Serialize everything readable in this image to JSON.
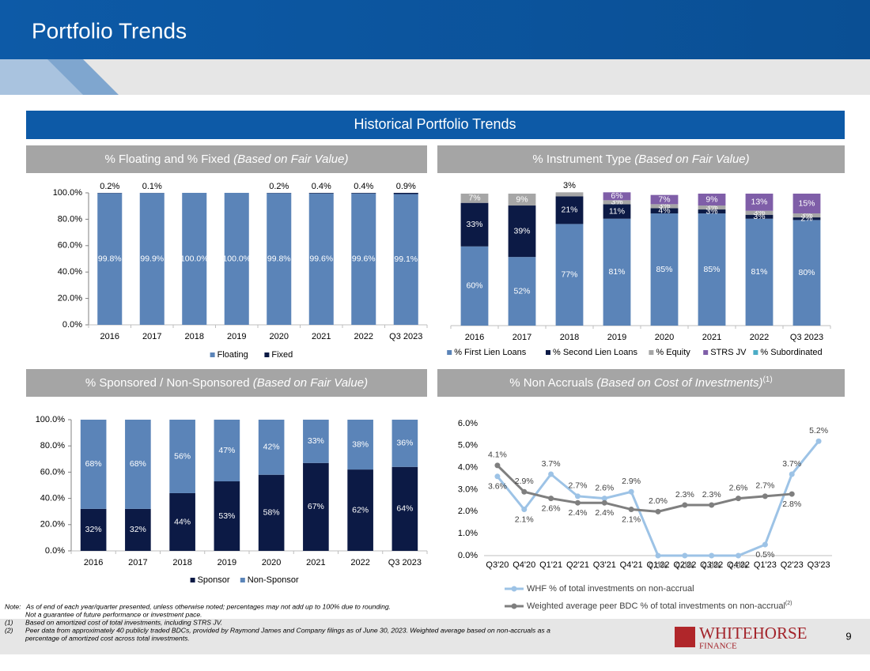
{
  "header": {
    "title": "Portfolio Trends",
    "section": "Historical Portfolio Trends"
  },
  "chart_data": [
    {
      "type": "stacked_bar",
      "title": "% Floating and % Fixed",
      "title_note": "(Based on Fair Value)",
      "categories": [
        "2016",
        "2017",
        "2018",
        "2019",
        "2020",
        "2021",
        "2022",
        "Q3 2023"
      ],
      "series": [
        {
          "name": "Floating",
          "color": "#5b84b8",
          "values": [
            99.8,
            99.9,
            100.0,
            100.0,
            99.8,
            99.6,
            99.6,
            99.1
          ],
          "value_labels": [
            "99.8%",
            "99.9%",
            "100.0%",
            "100.0%",
            "99.8%",
            "99.6%",
            "99.6%",
            "99.1%"
          ]
        },
        {
          "name": "Fixed",
          "color": "#0c1a45",
          "values": [
            0.2,
            0.1,
            null,
            null,
            0.2,
            0.4,
            0.4,
            0.9
          ],
          "value_labels": [
            "0.2%",
            "0.1%",
            null,
            null,
            "0.2%",
            "0.4%",
            "0.4%",
            "0.9%"
          ]
        }
      ],
      "ylim": [
        0,
        100
      ],
      "yticks": [
        {
          "value": 0,
          "label": "0.0%"
        },
        {
          "value": 20,
          "label": "20.0%"
        },
        {
          "value": 40,
          "label": "40.0%"
        },
        {
          "value": 60,
          "label": "60.0%"
        },
        {
          "value": 80,
          "label": "80.0%"
        },
        {
          "value": 100,
          "label": "100.0%"
        }
      ],
      "legend": "bottom"
    },
    {
      "type": "stacked_bar",
      "title": "% Instrument Type",
      "title_note": "(Based on Fair Value)",
      "categories": [
        "2016",
        "2017",
        "2018",
        "2019",
        "2020",
        "2021",
        "2022",
        "Q3 2023"
      ],
      "series": [
        {
          "name": "% First Lien Loans",
          "color": "#5b84b8",
          "values": [
            60,
            52,
            77,
            81,
            85,
            85,
            81,
            80
          ],
          "value_labels": [
            "60%",
            "52%",
            "77%",
            "81%",
            "85%",
            "85%",
            "81%",
            "80%"
          ]
        },
        {
          "name": "% Second Lien Loans",
          "color": "#0c1a45",
          "values": [
            33,
            39,
            21,
            11,
            4,
            3,
            3,
            2
          ],
          "value_labels": [
            "33%",
            "39%",
            "21%",
            "11%",
            "4%",
            "3%",
            "3%",
            "2%"
          ]
        },
        {
          "name": "% Equity",
          "color": "#a6a6a6",
          "values": [
            7,
            9,
            3,
            3,
            3,
            3,
            3,
            3
          ],
          "value_labels": [
            "7%",
            "9%",
            "3%",
            "3%",
            "3%",
            "3%",
            "3%",
            "3%"
          ]
        },
        {
          "name": "STRS JV",
          "color": "#7f5ea8",
          "values": [
            null,
            null,
            null,
            6,
            7,
            9,
            13,
            15
          ],
          "value_labels": [
            null,
            null,
            null,
            "6%",
            "7%",
            "9%",
            "13%",
            "15%"
          ]
        },
        {
          "name": "% Subordinated",
          "color": "#4bacc6",
          "values": [
            null,
            null,
            null,
            null,
            null,
            null,
            null,
            null
          ]
        }
      ],
      "ylim": [
        0,
        100
      ],
      "legend": "bottom"
    },
    {
      "type": "stacked_bar",
      "title": "% Sponsored / Non-Sponsored",
      "title_note": "(Based on Fair Value)",
      "categories": [
        "2016",
        "2017",
        "2018",
        "2019",
        "2020",
        "2021",
        "2022",
        "Q3 2023"
      ],
      "series": [
        {
          "name": "Sponsor",
          "color": "#0c1a45",
          "values": [
            32,
            32,
            44,
            53,
            58,
            67,
            62,
            64
          ],
          "value_labels": [
            "32%",
            "32%",
            "44%",
            "53%",
            "58%",
            "67%",
            "62%",
            "64%"
          ]
        },
        {
          "name": "Non-Sponsor",
          "color": "#5b84b8",
          "values": [
            68,
            68,
            56,
            47,
            42,
            33,
            38,
            36
          ],
          "value_labels": [
            "68%",
            "68%",
            "56%",
            "47%",
            "42%",
            "33%",
            "38%",
            "36%"
          ]
        }
      ],
      "ylim": [
        0,
        100
      ],
      "yticks": [
        {
          "value": 0,
          "label": "0.0%"
        },
        {
          "value": 20,
          "label": "20.0%"
        },
        {
          "value": 40,
          "label": "40.0%"
        },
        {
          "value": 60,
          "label": "60.0%"
        },
        {
          "value": 80,
          "label": "80.0%"
        },
        {
          "value": 100,
          "label": "100.0%"
        }
      ],
      "legend": "bottom"
    },
    {
      "type": "line",
      "title": "% Non Accruals",
      "title_note": "(Based on Cost of Investments)",
      "title_ref": "(1)",
      "categories": [
        "Q3'20",
        "Q4'20",
        "Q1'21",
        "Q2'21",
        "Q3'21",
        "Q4'21",
        "Q1'22",
        "Q2'22",
        "Q3'22",
        "Q4'22",
        "Q1'23",
        "Q2'23",
        "Q3'23"
      ],
      "series": [
        {
          "name": "WHF % of total investments on non-accrual",
          "color": "#9dc3e6",
          "values": [
            3.6,
            2.1,
            3.7,
            2.7,
            2.6,
            2.9,
            0.0,
            0.0,
            0.0,
            0.0,
            0.5,
            3.7,
            5.2
          ],
          "value_labels": [
            "3.6%",
            "2.1%",
            "3.7%",
            "2.7%",
            "2.6%",
            "2.9%",
            "0.0%",
            "0.0%",
            "0.0%",
            "0.0%",
            "0.5%",
            "3.7%",
            "5.2%"
          ]
        },
        {
          "name": "Weighted average peer  BDC % of total investments on non-accrual",
          "name_ref": "(2)",
          "color": "#7f7f7f",
          "values": [
            4.1,
            2.9,
            2.6,
            2.4,
            2.4,
            2.1,
            2.0,
            2.3,
            2.3,
            2.6,
            2.7,
            2.8,
            null
          ],
          "value_labels": [
            "4.1%",
            "2.9%",
            "2.6%",
            "2.4%",
            "2.4%",
            "2.1%",
            "2.0%",
            "2.3%",
            "2.3%",
            "2.6%",
            "2.7%",
            "2.8%",
            null
          ]
        }
      ],
      "ylim": [
        0,
        6
      ],
      "yticks": [
        {
          "value": 0,
          "label": "0.0%"
        },
        {
          "value": 1,
          "label": "1.0%"
        },
        {
          "value": 2,
          "label": "2.0%"
        },
        {
          "value": 3,
          "label": "3.0%"
        },
        {
          "value": 4,
          "label": "4.0%"
        },
        {
          "value": 5,
          "label": "5.0%"
        },
        {
          "value": 6,
          "label": "6.0%"
        }
      ],
      "legend": "bottom"
    }
  ],
  "footer": {
    "notes": [
      {
        "marker": "Note:",
        "lines": [
          "As of end of each year/quarter presented, unless otherwise noted; percentages may not add up to 100% due to rounding.",
          "Not a guarantee of future performance or investment pace."
        ]
      },
      {
        "marker": "(1)",
        "lines": [
          "Based on amortized cost of total investments, including STRS JV."
        ]
      },
      {
        "marker": "(2)",
        "lines": [
          "Peer data from approximately 40 publicly traded BDCs, provided by Raymond James and Company filings as of June 30, 2023. Weighted average based on non-accruals as a",
          "percentage of amortized cost across total investments."
        ]
      }
    ],
    "logo": "WHITEHORSE",
    "logo_sub": "FINANCE",
    "page": "9"
  }
}
